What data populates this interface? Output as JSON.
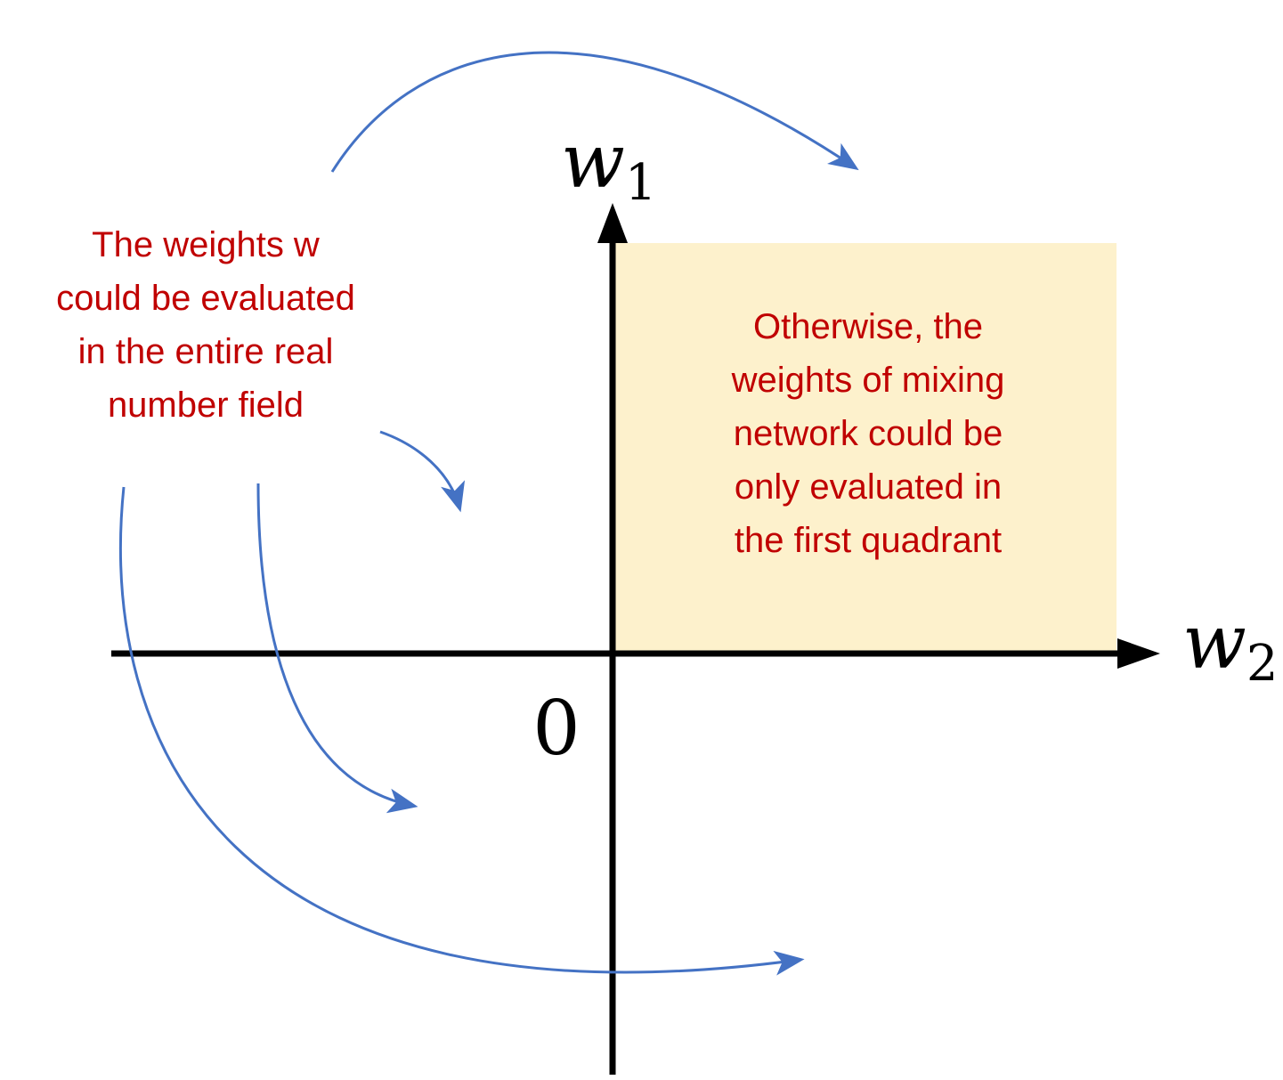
{
  "colors": {
    "text_red": "#c00000",
    "arrow_blue": "#4472c4",
    "quadrant_fill": "#fdf1cc",
    "axis_black": "#000000"
  },
  "axes": {
    "vertical_label": "w",
    "vertical_subscript": "1",
    "horizontal_label": "w",
    "horizontal_subscript": "2",
    "origin_label": "0"
  },
  "notes": {
    "left": {
      "lines": [
        "The weights w",
        "could be evaluated",
        "in the entire real",
        "number field"
      ]
    },
    "right": {
      "lines": [
        "Otherwise, the",
        "weights of mixing",
        "network could be",
        "only evaluated in",
        "the first quadrant"
      ]
    }
  },
  "arrows": [
    {
      "name": "arrow-to-first-quadrant"
    },
    {
      "name": "arrow-to-second-quadrant"
    },
    {
      "name": "arrow-to-third-quadrant"
    },
    {
      "name": "arrow-to-fourth-quadrant"
    }
  ]
}
